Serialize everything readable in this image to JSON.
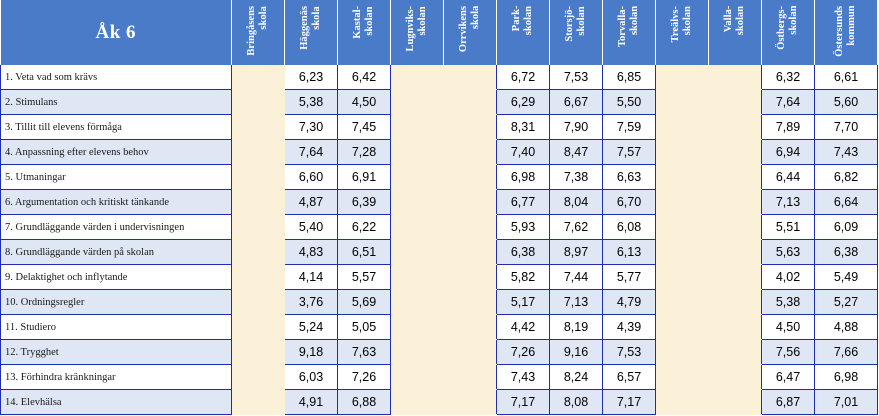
{
  "title": "Åk 6",
  "columns": [
    "Bringåsens\nskola",
    "Häggenäs\nskola",
    "Kastal-\nskolan",
    "Lugnviks-\nskolan",
    "Orrvikens\nskola",
    "Park-\nskolan",
    "Storsjö-\nskolan",
    "Torvalla-\nskolan",
    "Treälvs-\nskolan",
    "Valla-\nskolan",
    "Östbergs-\nskolan",
    "Östersunds\nkommun"
  ],
  "rows": [
    {
      "label": "1. Veta vad som krävs",
      "values": [
        "",
        "6,23",
        "6,42",
        "",
        "",
        "6,72",
        "7,53",
        "6,85",
        "",
        "",
        "6,32",
        "6,61"
      ]
    },
    {
      "label": "2. Stimulans",
      "values": [
        "",
        "5,38",
        "4,50",
        "",
        "",
        "6,29",
        "6,67",
        "5,50",
        "",
        "",
        "7,64",
        "5,60"
      ]
    },
    {
      "label": "3. Tillit till elevens förmåga",
      "values": [
        "",
        "7,30",
        "7,45",
        "",
        "",
        "8,31",
        "7,90",
        "7,59",
        "",
        "",
        "7,89",
        "7,70"
      ]
    },
    {
      "label": "4. Anpassning efter elevens behov",
      "values": [
        "",
        "7,64",
        "7,28",
        "",
        "",
        "7,40",
        "8,47",
        "7,57",
        "",
        "",
        "6,94",
        "7,43"
      ]
    },
    {
      "label": "5. Utmaningar",
      "values": [
        "",
        "6,60",
        "6,91",
        "",
        "",
        "6,98",
        "7,38",
        "6,63",
        "",
        "",
        "6,44",
        "6,82"
      ]
    },
    {
      "label": "6. Argumentation och kritiskt tänkande",
      "values": [
        "",
        "4,87",
        "6,39",
        "",
        "",
        "6,77",
        "8,04",
        "6,70",
        "",
        "",
        "7,13",
        "6,64"
      ]
    },
    {
      "label": "7. Grundläggande värden i undervisningen",
      "values": [
        "",
        "5,40",
        "6,22",
        "",
        "",
        "5,93",
        "7,62",
        "6,08",
        "",
        "",
        "5,51",
        "6,09"
      ]
    },
    {
      "label": "8. Grundläggande värden på skolan",
      "values": [
        "",
        "4,83",
        "6,51",
        "",
        "",
        "6,38",
        "8,97",
        "6,13",
        "",
        "",
        "5,63",
        "6,38"
      ]
    },
    {
      "label": "9. Delaktighet och inflytande",
      "values": [
        "",
        "4,14",
        "5,57",
        "",
        "",
        "5,82",
        "7,44",
        "5,77",
        "",
        "",
        "4,02",
        "5,49"
      ]
    },
    {
      "label": "10. Ordningsregler",
      "values": [
        "",
        "3,76",
        "5,69",
        "",
        "",
        "5,17",
        "7,13",
        "4,79",
        "",
        "",
        "5,38",
        "5,27"
      ]
    },
    {
      "label": "11. Studiero",
      "values": [
        "",
        "5,24",
        "5,05",
        "",
        "",
        "4,42",
        "8,19",
        "4,39",
        "",
        "",
        "4,50",
        "4,88"
      ]
    },
    {
      "label": "12. Trygghet",
      "values": [
        "",
        "9,18",
        "7,63",
        "",
        "",
        "7,26",
        "9,16",
        "7,53",
        "",
        "",
        "7,56",
        "7,66"
      ]
    },
    {
      "label": "13. Förhindra kränkningar",
      "values": [
        "",
        "6,03",
        "7,26",
        "",
        "",
        "7,43",
        "8,24",
        "6,57",
        "",
        "",
        "6,47",
        "6,98"
      ]
    },
    {
      "label": "14. Elevhälsa",
      "values": [
        "",
        "4,91",
        "6,88",
        "",
        "",
        "7,17",
        "8,08",
        "7,17",
        "",
        "",
        "6,87",
        "7,01"
      ]
    }
  ]
}
